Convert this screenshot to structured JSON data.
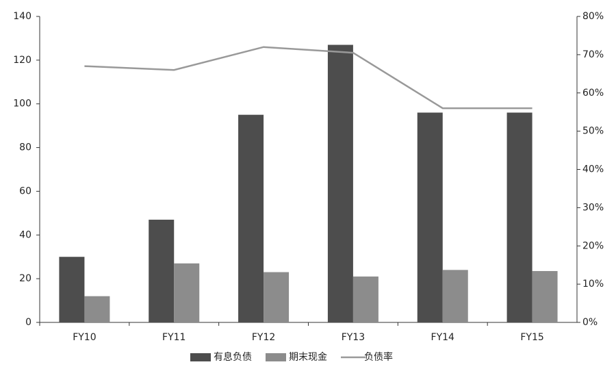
{
  "chart_data": {
    "type": "bar",
    "categories": [
      "FY10",
      "FY11",
      "FY12",
      "FY13",
      "FY14",
      "FY15"
    ],
    "series": [
      {
        "name": "有息负债",
        "color": "#4d4d4d",
        "type": "bar",
        "values": [
          30,
          47,
          95,
          127,
          96,
          96
        ]
      },
      {
        "name": "期末现金",
        "color": "#8c8c8c",
        "type": "bar",
        "values": [
          12,
          27,
          23,
          21,
          24,
          23.5
        ]
      },
      {
        "name": "负债率",
        "color": "#999999",
        "type": "line",
        "axis": "y2",
        "values": [
          67,
          66,
          72,
          70.5,
          56,
          56
        ]
      }
    ],
    "ylim": [
      0,
      140
    ],
    "yticks": [
      0,
      20,
      40,
      60,
      80,
      100,
      120,
      140
    ],
    "y2lim": [
      0,
      80
    ],
    "y2ticks": [
      {
        "value": 0,
        "label": "0%"
      },
      {
        "value": 10,
        "label": "10%"
      },
      {
        "value": 20,
        "label": "20%"
      },
      {
        "value": 30,
        "label": "30%"
      },
      {
        "value": 40,
        "label": "40%"
      },
      {
        "value": 50,
        "label": "50%"
      },
      {
        "value": 60,
        "label": "60%"
      },
      {
        "value": 70,
        "label": "70%"
      },
      {
        "value": 80,
        "label": "80%"
      }
    ],
    "legend": "bottom"
  }
}
